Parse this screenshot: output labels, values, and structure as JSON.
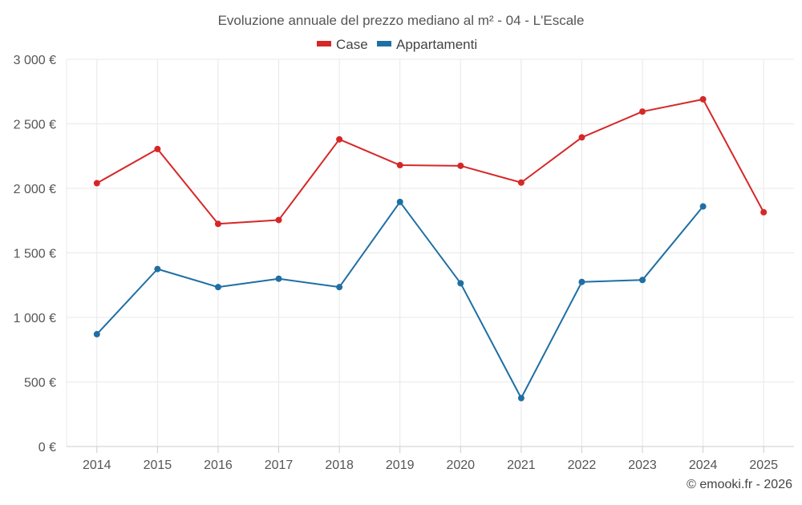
{
  "chart_data": {
    "type": "line",
    "title": "Evoluzione annuale del prezzo mediano al m² - 04 - L'Escale",
    "categories": [
      "2014",
      "2015",
      "2016",
      "2017",
      "2018",
      "2019",
      "2020",
      "2021",
      "2022",
      "2023",
      "2024",
      "2025"
    ],
    "series": [
      {
        "name": "Case",
        "color": "#d62728",
        "values": [
          2040,
          2305,
          1725,
          1755,
          2380,
          2180,
          2175,
          2045,
          2395,
          2595,
          2690,
          1815
        ]
      },
      {
        "name": "Appartamenti",
        "color": "#1f6fa3",
        "values": [
          870,
          1375,
          1235,
          1300,
          1235,
          1895,
          1265,
          375,
          1275,
          1290,
          1860,
          null
        ]
      }
    ],
    "y_ticks": [
      "0 €",
      "500 €",
      "1 000 €",
      "1 500 €",
      "2 000 €",
      "2 500 €",
      "3 000 €"
    ],
    "y_tick_values": [
      0,
      500,
      1000,
      1500,
      2000,
      2500,
      3000
    ],
    "ylim": [
      0,
      3000
    ],
    "xlabel": "",
    "ylabel": "",
    "grid": true,
    "legend_position": "top-center"
  },
  "credit": "© emooki.fr - 2026"
}
